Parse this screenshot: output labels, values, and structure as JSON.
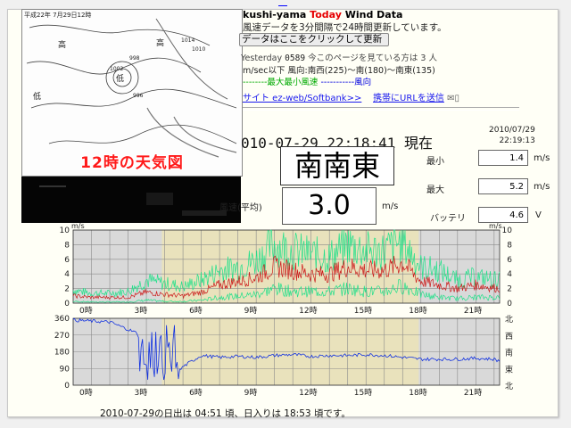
{
  "header": {
    "title_prefix": "kushi-yama ",
    "title_today": "Today",
    "title_suffix": " Wind Data",
    "subtitle": "風速データを3分間隔で24時間更新しています。",
    "refresh_button": "データはここをクリックして更新",
    "visitors_label": "Yesterday",
    "visitors_count": "0589",
    "visitors_text": "今このページを見ている方は 3 人",
    "legend_range": "m/sec以下  風向:南西(225)〜南(180)〜南東(135)",
    "legend_max_min": "--------最大最小風速",
    "legend_dir": "-----------風向",
    "link_site": "サイト ez-web/Softbank>>",
    "link_mobile": "携帯にURLを送信"
  },
  "weather_map": {
    "caption": "12時の天気図",
    "header": "平成22年 7月29日12時"
  },
  "readout": {
    "datetime": "010-07-29 22:18:41 現在",
    "stamp_date": "2010/07/29",
    "stamp_time": "22:19:13",
    "direction": "南南東",
    "speed_label": "風速(平均)",
    "speed": "3.0",
    "speed_unit": "m/s",
    "min_label": "最小",
    "min_value": "1.4",
    "min_unit": "m/s",
    "max_label": "最大",
    "max_value": "5.2",
    "max_unit": "m/s",
    "battery_label": "バッテリ",
    "battery_value": "4.6",
    "battery_unit": "V"
  },
  "sun": {
    "text": "2010-07-29の日出は 04:51 頃、日入りは 18:53 頃です。"
  },
  "colors": {
    "maxmin": "#22e08a",
    "avg": "#cc1a1a",
    "dir": "#1030e0",
    "night": "#d9d9d9",
    "day": "#e9e2bc"
  },
  "chart_data": [
    {
      "type": "line",
      "title": "",
      "ylabel_left": "m/s",
      "ylabel_right": "m/s",
      "x_ticks": [
        "0時",
        "3時",
        "6時",
        "9時",
        "12時",
        "15時",
        "18時",
        "21時"
      ],
      "y_ticks": [
        "10",
        "8",
        "6",
        "4",
        "2",
        "0"
      ],
      "ylim": [
        0,
        10
      ],
      "xlim_hours": [
        0,
        23.3
      ],
      "sunrise_hour": 4.85,
      "sunset_hour": 18.88,
      "series": [
        {
          "key": "max",
          "hours": [
            0,
            1,
            2,
            3,
            4,
            5,
            6,
            7,
            8,
            9,
            10,
            11,
            12,
            13,
            14,
            15,
            16,
            17,
            18,
            19,
            20,
            21,
            22,
            23.3
          ],
          "values": [
            2.0,
            1.5,
            1.5,
            1.8,
            3.5,
            3.0,
            2.5,
            3.5,
            5.0,
            5.5,
            6.5,
            9.0,
            8.0,
            7.5,
            7.0,
            9.0,
            8.0,
            8.0,
            9.5,
            5.5,
            5.0,
            3.5,
            4.0,
            3.5
          ]
        },
        {
          "key": "avg",
          "hours": [
            0,
            1,
            2,
            3,
            4,
            5,
            6,
            7,
            8,
            9,
            10,
            11,
            12,
            13,
            14,
            15,
            16,
            17,
            18,
            19,
            20,
            21,
            22,
            23.3
          ],
          "values": [
            1.0,
            0.8,
            0.8,
            0.8,
            1.5,
            1.2,
            1.0,
            1.5,
            2.5,
            3.0,
            3.5,
            5.0,
            4.5,
            4.0,
            4.0,
            5.0,
            4.5,
            4.5,
            5.5,
            3.0,
            2.5,
            2.0,
            2.5,
            2.0
          ]
        },
        {
          "key": "min",
          "hours": [
            0,
            1,
            2,
            3,
            4,
            5,
            6,
            7,
            8,
            9,
            10,
            11,
            12,
            13,
            14,
            15,
            16,
            17,
            18,
            19,
            20,
            21,
            22,
            23.3
          ],
          "values": [
            0.3,
            0.2,
            0.2,
            0.2,
            0.5,
            0.3,
            0.3,
            0.5,
            1.0,
            1.2,
            1.5,
            2.5,
            2.0,
            2.0,
            2.0,
            2.5,
            2.0,
            2.0,
            3.0,
            1.5,
            1.0,
            0.8,
            1.0,
            1.0
          ]
        }
      ]
    },
    {
      "type": "line",
      "title": "",
      "x_ticks": [
        "0時",
        "3時",
        "6時",
        "9時",
        "12時",
        "15時",
        "18時",
        "21時"
      ],
      "y_ticks": [
        "360",
        "270",
        "180",
        "90",
        "0"
      ],
      "y_ticks_right": [
        "北",
        "西",
        "南",
        "東",
        "北"
      ],
      "ylim": [
        0,
        360
      ],
      "xlim_hours": [
        0,
        23.3
      ],
      "series": [
        {
          "key": "dir",
          "hours": [
            0,
            1,
            2,
            3,
            3.5,
            4,
            4.5,
            5,
            5.5,
            6,
            7,
            8,
            9,
            10,
            11,
            12,
            13,
            14,
            15,
            16,
            17,
            18,
            19,
            20,
            21,
            22,
            23,
            23.3
          ],
          "values": [
            350,
            345,
            340,
            300,
            280,
            150,
            60,
            120,
            40,
            100,
            160,
            150,
            155,
            150,
            160,
            165,
            155,
            160,
            160,
            165,
            160,
            150,
            140,
            140,
            140,
            145,
            140,
            130
          ]
        }
      ]
    }
  ]
}
